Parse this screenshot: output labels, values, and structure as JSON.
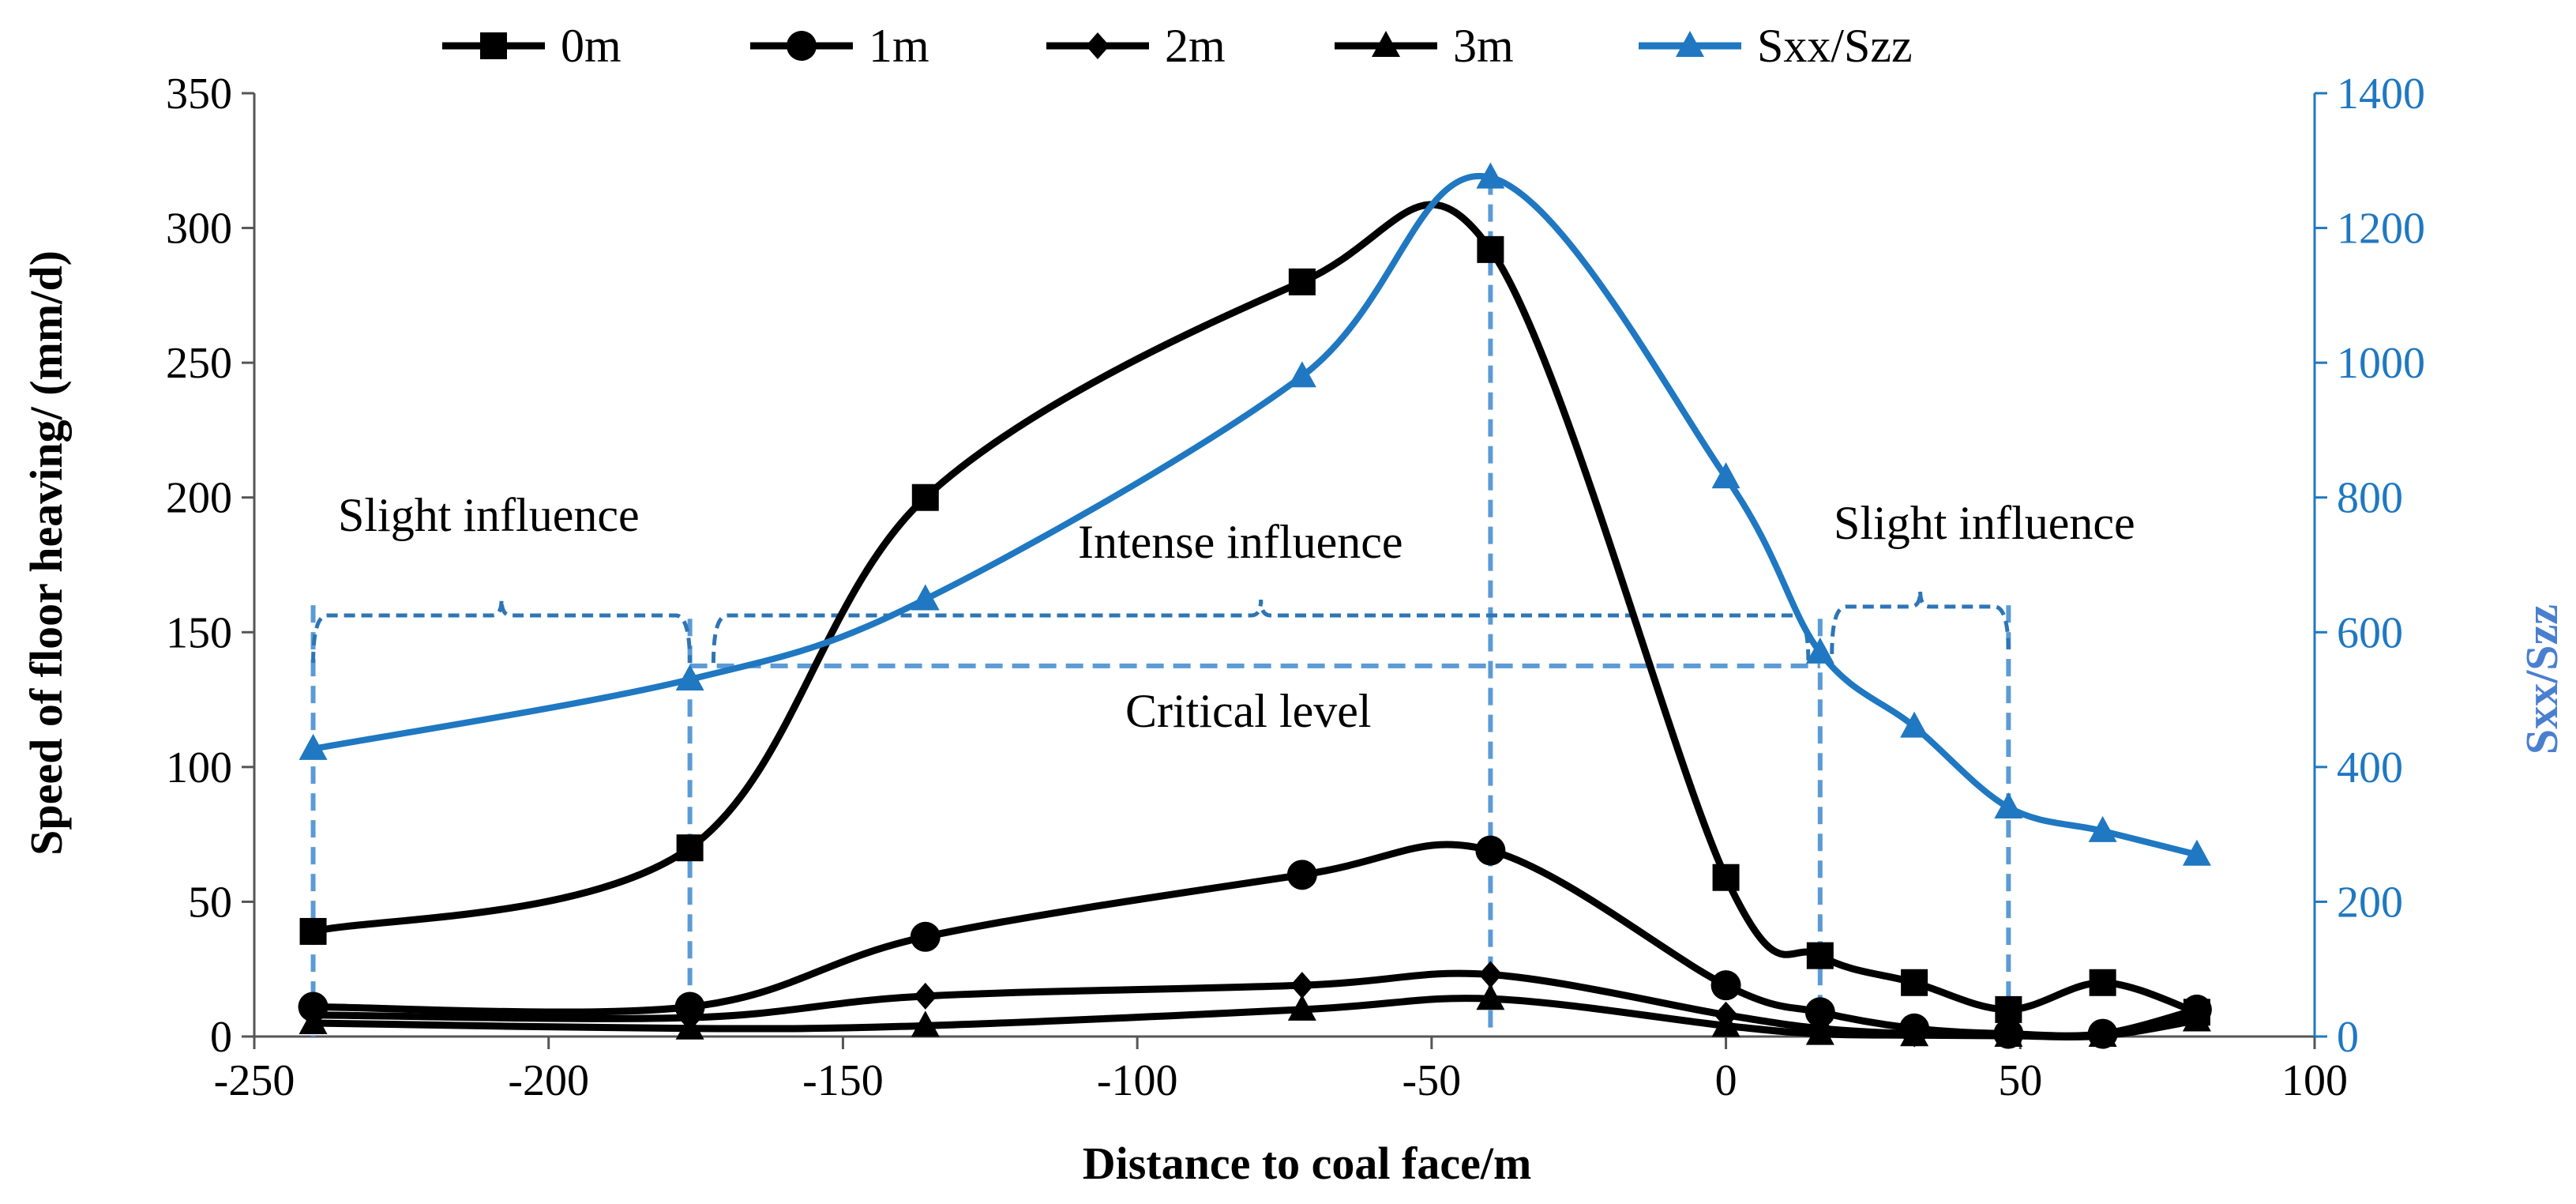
{
  "chart_data": {
    "type": "line",
    "xlabel": "Distance to coal face/m",
    "ylabel": "Speed of floor heaving/ (mm/d)",
    "y2label": "Sxx/Szz",
    "xlim": [
      -250,
      100
    ],
    "xticks": [
      -250,
      -200,
      -150,
      -100,
      -50,
      0,
      50,
      100
    ],
    "ylim": [
      0,
      350
    ],
    "yticks": [
      0,
      50,
      100,
      150,
      200,
      250,
      300,
      350
    ],
    "y2lim": [
      0,
      1400
    ],
    "y2ticks": [
      0,
      200,
      400,
      600,
      800,
      1000,
      1200,
      1400
    ],
    "legend_position": "top",
    "series": [
      {
        "name": "0m",
        "axis": "left",
        "marker": "square",
        "color": "#000000",
        "x": [
          -240,
          -176,
          -136,
          -72,
          -40,
          0,
          16,
          32,
          48,
          64,
          80
        ],
        "y": [
          39,
          70,
          200,
          280,
          292,
          59,
          30,
          20,
          10,
          20,
          9
        ]
      },
      {
        "name": "1m",
        "axis": "left",
        "marker": "circle",
        "color": "#000000",
        "x": [
          -240,
          -176,
          -136,
          -72,
          -40,
          0,
          16,
          32,
          48,
          64,
          80
        ],
        "y": [
          11,
          11,
          37,
          60,
          69,
          19,
          9,
          3,
          1,
          1,
          10
        ]
      },
      {
        "name": "2m",
        "axis": "left",
        "marker": "diamond",
        "color": "#000000",
        "x": [
          -240,
          -176,
          -136,
          -72,
          -40,
          0,
          16,
          32,
          48,
          64,
          80
        ],
        "y": [
          8,
          7,
          15,
          19,
          23,
          8,
          3,
          1,
          0.5,
          0.5,
          8
        ]
      },
      {
        "name": "3m",
        "axis": "left",
        "marker": "triangle",
        "color": "#000000",
        "x": [
          -240,
          -176,
          -136,
          -72,
          -40,
          0,
          16,
          32,
          48,
          64,
          80
        ],
        "y": [
          5,
          3,
          4,
          10,
          14,
          4,
          1,
          0.5,
          0.3,
          0.3,
          6
        ]
      },
      {
        "name": "Sxx/Szz",
        "axis": "right",
        "marker": "triangle",
        "color": "#1f78c1",
        "x": [
          -240,
          -176,
          -136,
          -72,
          -40,
          0,
          16,
          32,
          48,
          64,
          80
        ],
        "y": [
          427,
          530,
          649,
          980,
          1275,
          830,
          570,
          460,
          340,
          305,
          270
        ]
      }
    ],
    "critical_level": 550,
    "annotations": {
      "slight_left": "Slight influence",
      "intense": "Intense influence",
      "slight_right": "Slight influence",
      "critical": "Critical level"
    },
    "dashed_lines_x": [
      -240,
      -176,
      -40,
      16,
      48
    ],
    "braces": [
      [
        -240,
        -176
      ],
      [
        -172,
        14
      ],
      [
        18,
        48
      ]
    ],
    "colors": {
      "black": "#000000",
      "blue": "#1f78c1",
      "dash_blue": "#5b9bd5",
      "brace_blue": "#2e75b6"
    }
  }
}
